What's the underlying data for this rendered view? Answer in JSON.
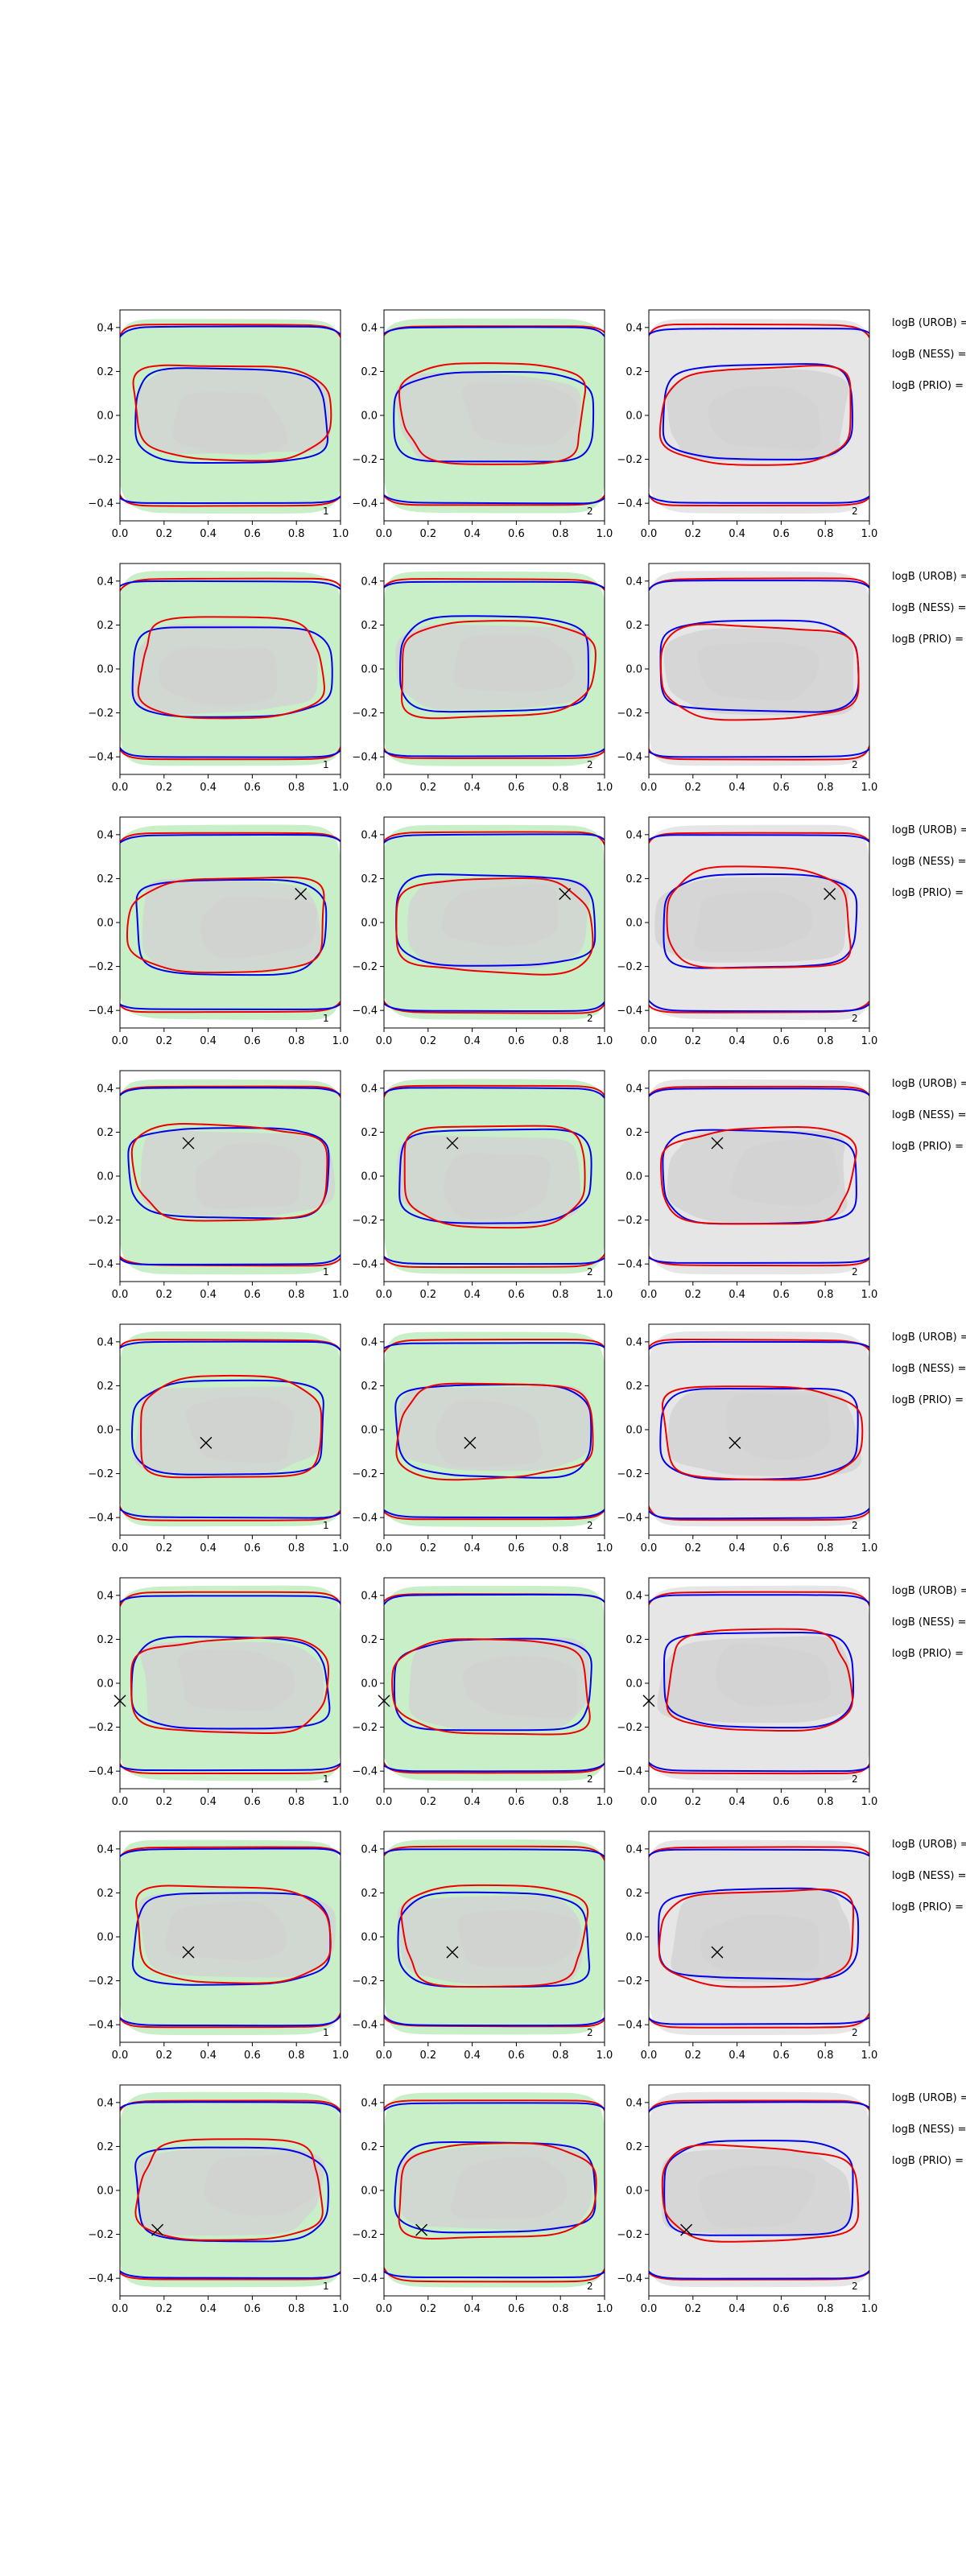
{
  "chart_data": {
    "type": "contour",
    "grid": false,
    "layout": {
      "rows": 8,
      "columns": 3
    },
    "xlim": [
      0.0,
      1.0
    ],
    "ylim": [
      -0.48,
      0.48
    ],
    "xticks": [
      0.0,
      0.2,
      0.4,
      0.6,
      0.8,
      1.0
    ],
    "xtick_labels": [
      "0.0",
      "0.2",
      "0.4",
      "0.6",
      "0.8",
      "1.0"
    ],
    "yticks": [
      -0.4,
      -0.2,
      0.0,
      0.2,
      0.4
    ],
    "ytick_labels": [
      "−0.4",
      "−0.2",
      "0.0",
      "0.2",
      "0.4"
    ],
    "columns": [
      {
        "fill_color": "#c8efc8",
        "inner_fill_color": "#d2d2d2",
        "corner_label": "1"
      },
      {
        "fill_color": "#c8efc8",
        "inner_fill_color": "#d2d2d2",
        "corner_label": "2"
      },
      {
        "fill_color": "#e6e6e6",
        "inner_fill_color": "#d2d2d2",
        "corner_label": "2"
      }
    ],
    "series_colors": {
      "blue": "#0000ee",
      "red": "#ee0000"
    },
    "rows": [
      {
        "marker": null,
        "labels": [
          "logB (UROB) =",
          "logB (NESS) =",
          "logB (PRIO) ="
        ]
      },
      {
        "marker": null,
        "labels": [
          "logB (UROB) =",
          "logB (NESS) =",
          "logB (PRIO) ="
        ]
      },
      {
        "marker": {
          "x": 0.82,
          "y": 0.13
        },
        "labels": [
          "logB (UROB) =",
          "logB (NESS) =",
          "logB (PRIO) ="
        ]
      },
      {
        "marker": {
          "x": 0.31,
          "y": 0.15
        },
        "labels": [
          "logB (UROB) =",
          "logB (NESS) =",
          "logB (PRIO) ="
        ]
      },
      {
        "marker": {
          "x": 0.39,
          "y": -0.06
        },
        "labels": [
          "logB (UROB) =",
          "logB (NESS) =",
          "logB (PRIO) ="
        ]
      },
      {
        "marker": {
          "x": 0.0,
          "y": -0.08
        },
        "labels": [
          "logB (UROB) =",
          "logB (NESS) =",
          "logB (PRIO) ="
        ]
      },
      {
        "marker": {
          "x": 0.31,
          "y": -0.07
        },
        "labels": [
          "logB (UROB) =",
          "logB (NESS) =",
          "logB (PRIO) ="
        ]
      },
      {
        "marker": {
          "x": 0.17,
          "y": -0.18
        },
        "labels": [
          "logB (UROB) =",
          "logB (NESS) =",
          "logB (PRIO) ="
        ]
      }
    ]
  }
}
